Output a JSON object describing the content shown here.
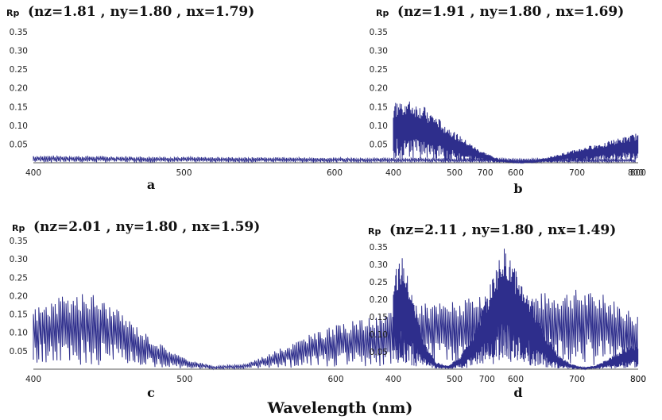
{
  "figure": {
    "xlabel": "Wavelength (nm)",
    "series_color": "#2e2e8c"
  },
  "chart_data": [
    {
      "type": "line",
      "panel": "a",
      "ylabel": "Rp",
      "title": "(nz=1.81 , ny=1.80 , nx=1.79)",
      "xlim": [
        400,
        800
      ],
      "ylim": [
        0,
        0.35
      ],
      "x_ticks": [
        400,
        500,
        600,
        700,
        800
      ],
      "y_ticks": [
        0.05,
        0.1,
        0.15,
        0.2,
        0.25,
        0.3,
        0.35
      ],
      "x_tick_labels": [
        "400",
        "500",
        "600",
        "700",
        "800"
      ],
      "y_tick_labels": [
        "0.05",
        "0.10",
        "0.15",
        "0.20",
        "0.25",
        "0.30",
        "0.35"
      ],
      "envelope": {
        "x": [
          400,
          450,
          500,
          550,
          600,
          650,
          700,
          750,
          800
        ],
        "y": [
          0.02,
          0.018,
          0.016,
          0.015,
          0.014,
          0.013,
          0.012,
          0.011,
          0.01
        ]
      }
    },
    {
      "type": "line",
      "panel": "b",
      "ylabel": "Rp",
      "title": "(nz=1.91 , ny=1.80 , nx=1.69)",
      "xlim": [
        400,
        800
      ],
      "ylim": [
        0,
        0.35
      ],
      "x_ticks": [
        400,
        500,
        600,
        700,
        800
      ],
      "y_ticks": [
        0.05,
        0.1,
        0.15,
        0.2,
        0.25,
        0.3,
        0.35
      ],
      "x_tick_labels": [
        "400",
        "500",
        "600",
        "700",
        "800"
      ],
      "y_tick_labels": [
        "0.05",
        "0.10",
        "0.15",
        "0.20",
        "0.25",
        "0.30",
        "0.35"
      ],
      "envelope": {
        "x": [
          400,
          420,
          450,
          480,
          510,
          540,
          570,
          600,
          630,
          660,
          690,
          720,
          750,
          780,
          800
        ],
        "y": [
          0.16,
          0.17,
          0.15,
          0.11,
          0.07,
          0.035,
          0.012,
          0.003,
          0.006,
          0.018,
          0.032,
          0.045,
          0.058,
          0.07,
          0.08
        ]
      }
    },
    {
      "type": "line",
      "panel": "c",
      "ylabel": "Rp",
      "title": "(nz=2.01 , ny=1.80 , nx=1.59)",
      "xlim": [
        400,
        800
      ],
      "ylim": [
        0,
        0.35
      ],
      "x_ticks": [
        400,
        500,
        600,
        700,
        800
      ],
      "y_ticks": [
        0.05,
        0.1,
        0.15,
        0.2,
        0.25,
        0.3,
        0.35
      ],
      "x_tick_labels": [
        "400",
        "500",
        "600",
        "700",
        "800"
      ],
      "y_tick_labels": [
        "0.05",
        "0.10",
        "0.15",
        "0.20",
        "0.25",
        "0.30",
        "0.35"
      ],
      "envelope": {
        "x": [
          400,
          420,
          440,
          460,
          480,
          500,
          520,
          540,
          560,
          580,
          600,
          620,
          640,
          660,
          680,
          700,
          720,
          740,
          760,
          780,
          800
        ],
        "y": [
          0.17,
          0.2,
          0.21,
          0.15,
          0.08,
          0.03,
          0.008,
          0.015,
          0.05,
          0.09,
          0.12,
          0.14,
          0.16,
          0.18,
          0.19,
          0.2,
          0.21,
          0.21,
          0.22,
          0.2,
          0.15
        ]
      }
    },
    {
      "type": "line",
      "panel": "d",
      "ylabel": "Rp",
      "title": "(nz=2.11 , ny=1.80 , nx=1.49)",
      "xlim": [
        400,
        800
      ],
      "ylim": [
        0,
        0.35
      ],
      "x_ticks": [
        400,
        500,
        600,
        700,
        800
      ],
      "y_ticks": [
        0.05,
        0.1,
        0.15,
        0.2,
        0.25,
        0.3,
        0.35
      ],
      "x_tick_labels": [
        "400",
        "500",
        "600",
        "700",
        "800"
      ],
      "y_tick_labels": [
        "0.05",
        "0.10",
        "0.15",
        "0.20",
        "0.25",
        "0.30",
        "0.35"
      ],
      "envelope": {
        "x": [
          400,
          415,
          430,
          450,
          470,
          490,
          510,
          530,
          550,
          565,
          580,
          595,
          610,
          630,
          650,
          670,
          690,
          710,
          730,
          750,
          770,
          790,
          800
        ],
        "y": [
          0.28,
          0.32,
          0.22,
          0.08,
          0.02,
          0.01,
          0.04,
          0.1,
          0.2,
          0.28,
          0.35,
          0.3,
          0.25,
          0.18,
          0.1,
          0.04,
          0.015,
          0.005,
          0.01,
          0.03,
          0.05,
          0.075,
          0.06
        ]
      }
    }
  ]
}
